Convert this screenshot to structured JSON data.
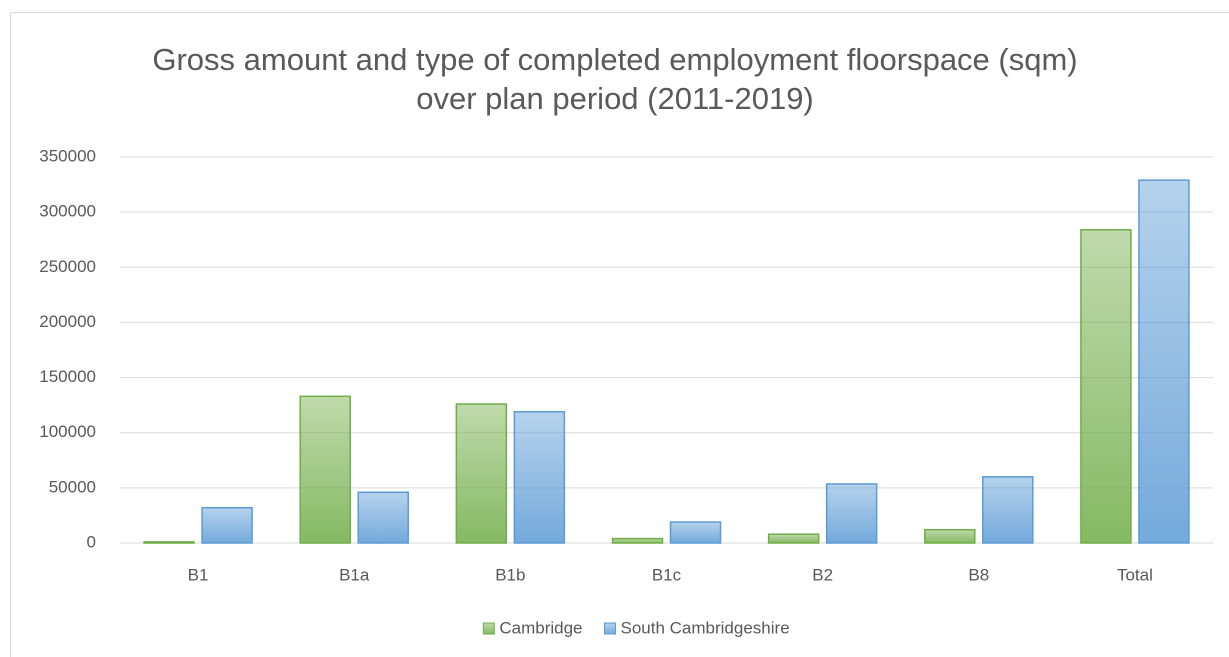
{
  "chart_data": {
    "type": "bar",
    "title": "Gross amount and type of completed employment floorspace (sqm) over plan period (2011-2019)",
    "categories": [
      "B1",
      "B1a",
      "B1b",
      "B1c",
      "B2",
      "B8",
      "Total"
    ],
    "series": [
      {
        "name": "Cambridge",
        "color": "#70ad47",
        "values": [
          1000,
          133000,
          126000,
          4000,
          8000,
          12000,
          284000
        ]
      },
      {
        "name": "South Cambridgeshire",
        "color": "#5b9bd5",
        "values": [
          32000,
          46000,
          119000,
          19000,
          53500,
          60000,
          329000
        ]
      }
    ],
    "ylim": [
      0,
      350000
    ],
    "yticks": [
      0,
      50000,
      100000,
      150000,
      200000,
      250000,
      300000,
      350000
    ],
    "grid": true,
    "legend": "bottom"
  }
}
